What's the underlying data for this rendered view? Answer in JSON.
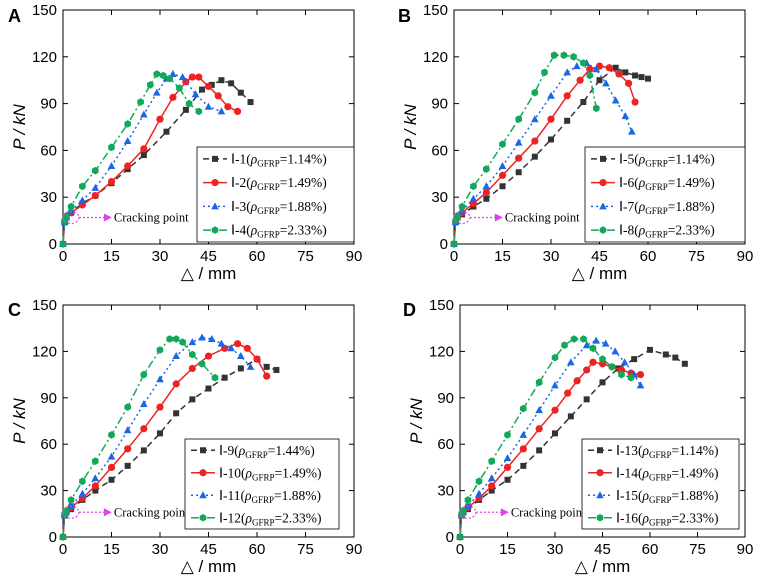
{
  "figure": {
    "colors": {
      "black": "#333333",
      "red": "#ee2222",
      "blue": "#1a66e8",
      "green": "#11a85a",
      "magenta": "#e040f0"
    },
    "y_ticks": [
      "0",
      "30",
      "60",
      "90",
      "120",
      "150"
    ],
    "x_ticks": [
      "0",
      "15",
      "30",
      "45",
      "60",
      "75",
      "90"
    ]
  },
  "chart_data": [
    {
      "panel": "A",
      "type": "line",
      "xlabel": "△ / mm",
      "ylabel": "P / kN",
      "xlim": [
        0,
        90
      ],
      "ylim": [
        0,
        150
      ],
      "annotation": "Cracking point",
      "crack": [
        0.9,
        17
      ],
      "series": [
        {
          "name": "Ⅰ-1",
          "rho": "=1.14%)",
          "color": "black",
          "marker": "square",
          "dash": "6,4",
          "x": [
            0,
            0.5,
            1,
            2.5,
            6,
            10,
            15,
            20,
            25,
            32,
            38,
            43,
            46,
            49,
            52,
            55,
            58
          ],
          "y": [
            0,
            14,
            17,
            20,
            26,
            31,
            39,
            48,
            57,
            72,
            86,
            99,
            102,
            105,
            103,
            97,
            91
          ]
        },
        {
          "name": "Ⅰ-2",
          "rho": "=1.49%)",
          "color": "red",
          "marker": "circle",
          "dash": "",
          "x": [
            0,
            0.5,
            1,
            2.5,
            6,
            10,
            15,
            20,
            25,
            30,
            34,
            38,
            40,
            42,
            45,
            48,
            51,
            54
          ],
          "y": [
            0,
            14,
            17,
            20,
            25,
            31,
            40,
            50,
            61,
            80,
            94,
            104,
            107,
            107,
            101,
            95,
            88,
            85
          ]
        },
        {
          "name": "Ⅰ-3",
          "rho": "=1.88%)",
          "color": "blue",
          "marker": "triangle",
          "dash": "2,3",
          "x": [
            0,
            0.5,
            1,
            2.5,
            6,
            10,
            15,
            20,
            25,
            29,
            32,
            34,
            37,
            41,
            45,
            49
          ],
          "y": [
            0,
            14,
            17,
            21,
            28,
            36,
            50,
            66,
            83,
            97,
            106,
            109,
            107,
            96,
            88,
            85
          ]
        },
        {
          "name": "Ⅰ-4",
          "rho": "=2.33%)",
          "color": "green",
          "marker": "hexagon",
          "dash": "8,3,2,3",
          "x": [
            0,
            0.5,
            1,
            2.5,
            6,
            10,
            15,
            20,
            24,
            27,
            29,
            31,
            33,
            36,
            39,
            42
          ],
          "y": [
            0,
            15,
            18,
            24,
            37,
            47,
            62,
            77,
            91,
            102,
            109,
            108,
            106,
            100,
            90,
            85
          ]
        }
      ]
    },
    {
      "panel": "B",
      "type": "line",
      "xlabel": "△ / mm",
      "ylabel": "P / kN",
      "xlim": [
        0,
        90
      ],
      "ylim": [
        0,
        150
      ],
      "annotation": "Cracking point",
      "crack": [
        0.9,
        17
      ],
      "series": [
        {
          "name": "Ⅰ-5",
          "rho": "=1.14%)",
          "color": "black",
          "marker": "square",
          "dash": "6,4",
          "x": [
            0,
            0.5,
            1,
            2.5,
            6,
            10,
            15,
            20,
            25,
            30,
            35,
            40,
            45,
            50,
            53,
            56,
            58,
            60
          ],
          "y": [
            0,
            14,
            17,
            19,
            24,
            29,
            37,
            46,
            56,
            67,
            79,
            91,
            105,
            113,
            110,
            108,
            107,
            106
          ]
        },
        {
          "name": "Ⅰ-6",
          "rho": "=1.49%)",
          "color": "red",
          "marker": "circle",
          "dash": "",
          "x": [
            0,
            0.5,
            1,
            2.5,
            6,
            10,
            15,
            20,
            25,
            30,
            35,
            39,
            42,
            45,
            48,
            51,
            54,
            56
          ],
          "y": [
            0,
            14,
            17,
            20,
            26,
            33,
            44,
            55,
            66,
            80,
            95,
            105,
            112,
            114,
            113,
            109,
            103,
            91
          ]
        },
        {
          "name": "Ⅰ-7",
          "rho": "=1.88%)",
          "color": "blue",
          "marker": "triangle",
          "dash": "2,3",
          "x": [
            0,
            0.5,
            1,
            2.5,
            6,
            10,
            15,
            20,
            25,
            30,
            35,
            38,
            41,
            44,
            47,
            50,
            53,
            55
          ],
          "y": [
            0,
            14,
            17,
            21,
            29,
            37,
            50,
            65,
            80,
            95,
            110,
            114,
            116,
            112,
            103,
            92,
            82,
            72
          ]
        },
        {
          "name": "Ⅰ-8",
          "rho": "=2.33%)",
          "color": "green",
          "marker": "hexagon",
          "dash": "8,3,2,3",
          "x": [
            0,
            0.5,
            1,
            2.5,
            6,
            10,
            15,
            20,
            25,
            28,
            31,
            34,
            37,
            40,
            42,
            44
          ],
          "y": [
            0,
            15,
            18,
            24,
            37,
            48,
            64,
            80,
            97,
            110,
            121,
            121,
            120,
            116,
            108,
            87
          ]
        }
      ]
    },
    {
      "panel": "C",
      "type": "line",
      "xlabel": "△ / mm",
      "ylabel": "P / kN",
      "xlim": [
        0,
        90
      ],
      "ylim": [
        0,
        150
      ],
      "annotation": "Cracking point",
      "crack": [
        0.9,
        16
      ],
      "series": [
        {
          "name": "Ⅰ-9",
          "rho": "=1.44%)",
          "color": "black",
          "marker": "square",
          "dash": "6,4",
          "x": [
            0,
            0.5,
            1,
            2.5,
            6,
            10,
            15,
            20,
            25,
            30,
            35,
            40,
            45,
            50,
            55,
            60,
            63,
            66
          ],
          "y": [
            0,
            14,
            16,
            18,
            24,
            30,
            37,
            46,
            56,
            67,
            80,
            89,
            96,
            103,
            109,
            115,
            110,
            108
          ]
        },
        {
          "name": "Ⅰ-10",
          "rho": "=1.49%)",
          "color": "red",
          "marker": "circle",
          "dash": "",
          "x": [
            0,
            0.5,
            1,
            2.5,
            6,
            10,
            15,
            20,
            25,
            30,
            35,
            40,
            45,
            50,
            54,
            57,
            60,
            63
          ],
          "y": [
            0,
            14,
            16,
            19,
            25,
            33,
            45,
            57,
            70,
            84,
            99,
            109,
            117,
            122,
            125,
            122,
            115,
            104
          ]
        },
        {
          "name": "Ⅰ-11",
          "rho": "=1.88%)",
          "color": "blue",
          "marker": "triangle",
          "dash": "2,3",
          "x": [
            0,
            0.5,
            1,
            2.5,
            6,
            10,
            15,
            20,
            25,
            30,
            35,
            40,
            43,
            46,
            49,
            52,
            55,
            58
          ],
          "y": [
            0,
            14,
            16,
            20,
            28,
            38,
            52,
            69,
            86,
            102,
            117,
            126,
            129,
            128,
            125,
            122,
            117,
            110
          ]
        },
        {
          "name": "Ⅰ-12",
          "rho": "=2.33%)",
          "color": "green",
          "marker": "hexagon",
          "dash": "8,3,2,3",
          "x": [
            0,
            0.5,
            1,
            2.5,
            6,
            10,
            15,
            20,
            25,
            30,
            33,
            35,
            37,
            40,
            43,
            47
          ],
          "y": [
            0,
            15,
            17,
            24,
            36,
            49,
            66,
            84,
            105,
            121,
            128,
            128,
            126,
            118,
            112,
            103
          ]
        }
      ]
    },
    {
      "panel": "D",
      "type": "line",
      "xlabel": "△ / mm",
      "ylabel": "P / kN",
      "xlim": [
        0,
        90
      ],
      "ylim": [
        0,
        150
      ],
      "annotation": "Cracking point",
      "crack": [
        0.9,
        16
      ],
      "series": [
        {
          "name": "Ⅰ-13",
          "rho": "=1.14%)",
          "color": "black",
          "marker": "square",
          "dash": "6,4",
          "x": [
            0,
            0.5,
            1,
            2.5,
            6,
            10,
            15,
            20,
            25,
            30,
            35,
            40,
            45,
            50,
            55,
            60,
            65,
            68,
            71
          ],
          "y": [
            0,
            14,
            16,
            18,
            24,
            30,
            37,
            46,
            56,
            67,
            78,
            89,
            100,
            109,
            115,
            121,
            118,
            116,
            112
          ]
        },
        {
          "name": "Ⅰ-14",
          "rho": "=1.49%)",
          "color": "red",
          "marker": "circle",
          "dash": "",
          "x": [
            0,
            0.5,
            1,
            2.5,
            6,
            10,
            15,
            20,
            25,
            30,
            34,
            37,
            40,
            42,
            45,
            48,
            51,
            54,
            57
          ],
          "y": [
            0,
            14,
            16,
            19,
            25,
            33,
            45,
            57,
            70,
            82,
            93,
            101,
            108,
            113,
            112,
            110,
            108,
            106,
            105
          ]
        },
        {
          "name": "Ⅰ-15",
          "rho": "=1.88%)",
          "color": "blue",
          "marker": "triangle",
          "dash": "2,3",
          "x": [
            0,
            0.5,
            1,
            2.5,
            6,
            10,
            15,
            20,
            25,
            30,
            35,
            40,
            43,
            46,
            49,
            52,
            55,
            57
          ],
          "y": [
            0,
            14,
            16,
            20,
            28,
            38,
            51,
            66,
            82,
            98,
            113,
            124,
            127,
            125,
            120,
            113,
            105,
            98
          ]
        },
        {
          "name": "Ⅰ-16",
          "rho": "=2.33%)",
          "color": "green",
          "marker": "hexagon",
          "dash": "8,3,2,3",
          "x": [
            0,
            0.5,
            1,
            2.5,
            6,
            10,
            15,
            20,
            25,
            30,
            33,
            36,
            39,
            42,
            45,
            48,
            51,
            54
          ],
          "y": [
            0,
            15,
            17,
            24,
            36,
            49,
            66,
            83,
            100,
            116,
            124,
            128,
            128,
            122,
            115,
            110,
            105,
            103
          ]
        }
      ]
    }
  ]
}
